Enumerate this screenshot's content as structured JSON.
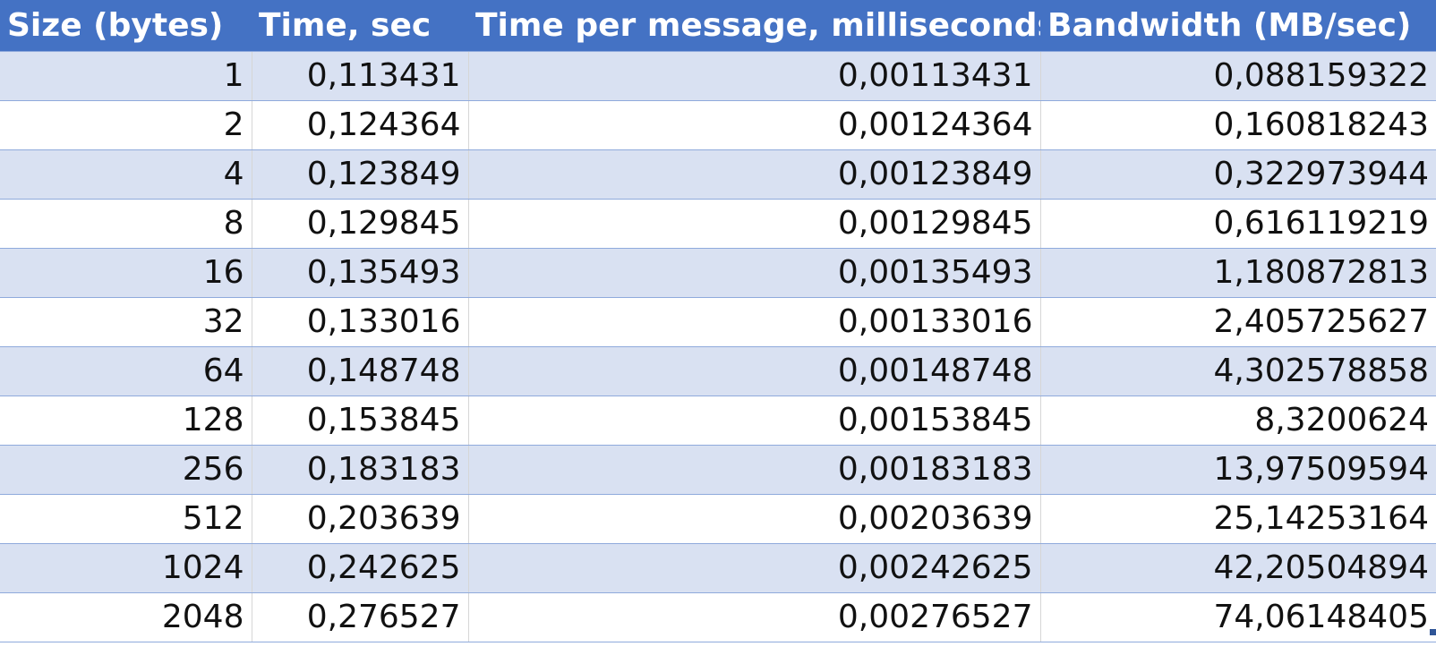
{
  "table": {
    "headers": [
      "Size (bytes)",
      "Time, sec",
      "Time per message, milliseconds",
      "Bandwidth (MB/sec)"
    ],
    "rows": [
      [
        "1",
        "0,113431",
        "0,00113431",
        "0,088159322"
      ],
      [
        "2",
        "0,124364",
        "0,00124364",
        "0,160818243"
      ],
      [
        "4",
        "0,123849",
        "0,00123849",
        "0,322973944"
      ],
      [
        "8",
        "0,129845",
        "0,00129845",
        "0,616119219"
      ],
      [
        "16",
        "0,135493",
        "0,00135493",
        "1,180872813"
      ],
      [
        "32",
        "0,133016",
        "0,00133016",
        "2,405725627"
      ],
      [
        "64",
        "0,148748",
        "0,00148748",
        "4,302578858"
      ],
      [
        "128",
        "0,153845",
        "0,00153845",
        "8,3200624"
      ],
      [
        "256",
        "0,183183",
        "0,00183183",
        "13,97509594"
      ],
      [
        "512",
        "0,203639",
        "0,00203639",
        "25,14253164"
      ],
      [
        "1024",
        "0,242625",
        "0,00242625",
        "42,20504894"
      ],
      [
        "2048",
        "0,276527",
        "0,00276527",
        "74,06148405"
      ]
    ]
  },
  "colors": {
    "header_bg": "#4472c4",
    "header_text": "#ffffff",
    "band_bg": "#d9e1f2",
    "row_border": "#8faadc"
  }
}
